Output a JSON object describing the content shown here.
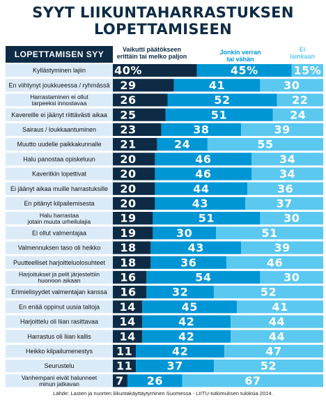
{
  "chart_data": {
    "type": "bar",
    "title": [
      "SYYT LIIKUNTAHARRASTUKSEN",
      "LOPETTAMISEEN"
    ],
    "category_header": "LOPETTAMISEN SYY",
    "series": [
      {
        "name": "Vaikutti päätökseen erittäin tai melko paljon",
        "legend_lines": [
          "Vaikutti päätökseen",
          "erittäin tai melko paljon"
        ],
        "color": "#0d2b45"
      },
      {
        "name": "Jonkin verran tai vähän",
        "legend_lines": [
          "Jonkin verran",
          "tai vähän"
        ],
        "color": "#0096d6"
      },
      {
        "name": "Ei lainkaan",
        "legend_lines": [
          "Ei",
          "lainkaan"
        ],
        "color": "#5bc8f0"
      }
    ],
    "categories": [
      [
        "Kyllästyminen lajiin"
      ],
      [
        "En viihtynyt joukkueessa / ryhmässä"
      ],
      [
        "Harrastaminen ei ollut",
        "tarpeeksi innostavaa"
      ],
      [
        "Kavereille ei jäänyt riittävästi aikaa"
      ],
      [
        "Sairaus / loukkaantuminen"
      ],
      [
        "Muutto uudelle paikkakunnalle"
      ],
      [
        "Halu panostaa opiskeluun"
      ],
      [
        "Kaveritkin lopettivat"
      ],
      [
        "Ei jäänyt aikaa muille harrastuksille"
      ],
      [
        "En pitänyt kilpailemisesta"
      ],
      [
        "Halu harrastaa",
        "jotain muuta urheilulajia"
      ],
      [
        "Ei ollut valmentajaa"
      ],
      [
        "Valmennuksen taso oli heikko"
      ],
      [
        "Puutteelliset harjoitteluolosuhteet"
      ],
      [
        "Harjoitukset ja pelit järjestettiin",
        "huonoon aikaan"
      ],
      [
        "Erimielisyydet valmentajan kanssa"
      ],
      [
        "En enää oppinut uusia taitoja"
      ],
      [
        "Harjoittelu oli liian rasittavaa"
      ],
      [
        "Harrastus oli liian kallis"
      ],
      [
        "Heikko kilpailumenestys"
      ],
      [
        "Seurustelu"
      ],
      [
        "Vanhempani eivät halunneet",
        "minun jatkavan"
      ]
    ],
    "values": [
      [
        "40%",
        "45%",
        "15%"
      ],
      [
        29,
        41,
        30
      ],
      [
        26,
        52,
        22
      ],
      [
        25,
        51,
        24
      ],
      [
        23,
        38,
        39
      ],
      [
        21,
        24,
        55
      ],
      [
        20,
        46,
        34
      ],
      [
        20,
        46,
        34
      ],
      [
        20,
        44,
        36
      ],
      [
        20,
        43,
        37
      ],
      [
        19,
        51,
        30
      ],
      [
        19,
        30,
        51
      ],
      [
        18,
        43,
        39
      ],
      [
        18,
        36,
        46
      ],
      [
        16,
        54,
        30
      ],
      [
        16,
        32,
        52
      ],
      [
        14,
        45,
        41
      ],
      [
        14,
        42,
        44
      ],
      [
        14,
        42,
        44
      ],
      [
        11,
        42,
        47
      ],
      [
        11,
        37,
        52
      ],
      [
        7,
        26,
        67
      ]
    ],
    "unit": "%",
    "stacked": true,
    "xlim": [
      0,
      100
    ],
    "label_bg": "#dbeaf7",
    "source": "Lähde: Lasten ja nuorten liikuntakäyttäytyminen Suomessa - LIITU-tutkimuksen tuloksia 2014."
  }
}
